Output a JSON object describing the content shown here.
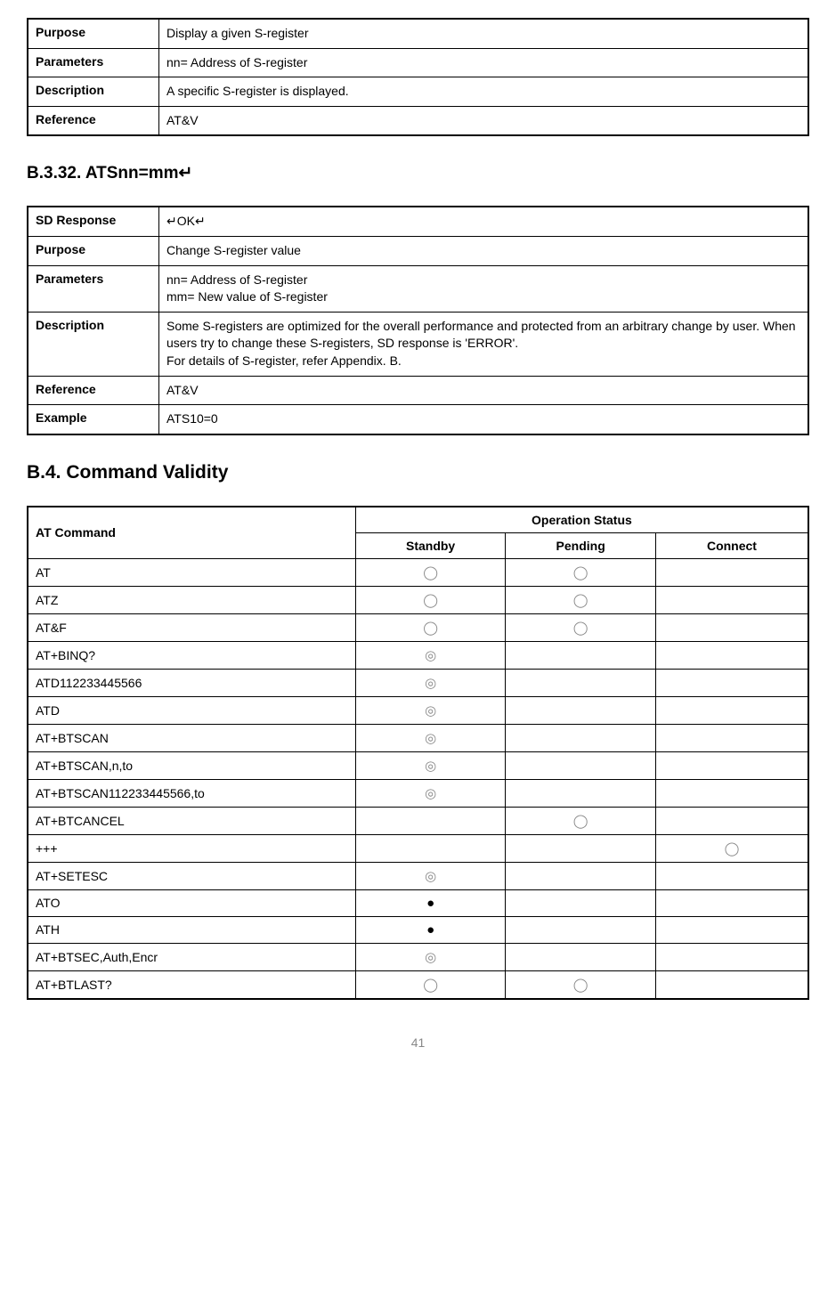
{
  "table1": {
    "rows": [
      {
        "label": "Purpose",
        "value": "Display a given S-register"
      },
      {
        "label": "Parameters",
        "value": "nn= Address of S-register"
      },
      {
        "label": "Description",
        "value": "A specific S-register is displayed."
      },
      {
        "label": "Reference",
        "value": "AT&V"
      }
    ]
  },
  "section1_title": "B.3.32. ATSnn=mm↵",
  "table2": {
    "rows": [
      {
        "label": "SD Response",
        "value": "↵OK↵"
      },
      {
        "label": "Purpose",
        "value": "Change S-register value"
      },
      {
        "label": "Parameters",
        "value": "nn= Address of S-register\nmm= New value of S-register"
      },
      {
        "label": "Description",
        "value": "Some S-registers are optimized for the overall performance and protected from an arbitrary change by user. When users try to change these S-registers, SD response is 'ERROR'.\nFor details of S-register, refer Appendix. B."
      },
      {
        "label": "Reference",
        "value": "AT&V"
      },
      {
        "label": "Example",
        "value": "ATS10=0"
      }
    ]
  },
  "section2_title": "B.4. Command Validity",
  "validity": {
    "head_cmd": "AT Command",
    "head_status": "Operation Status",
    "cols": [
      "Standby",
      "Pending",
      "Connect"
    ],
    "symbols": {
      "open": "◯",
      "double": "◎",
      "filled": "●"
    },
    "rows": [
      {
        "cmd": "AT",
        "s": "open",
        "p": "open",
        "c": ""
      },
      {
        "cmd": "ATZ",
        "s": "open",
        "p": "open",
        "c": ""
      },
      {
        "cmd": "AT&F",
        "s": "open",
        "p": "open",
        "c": ""
      },
      {
        "cmd": "AT+BINQ?",
        "s": "double",
        "p": "",
        "c": ""
      },
      {
        "cmd": "ATD112233445566",
        "s": "double",
        "p": "",
        "c": ""
      },
      {
        "cmd": "ATD",
        "s": "double",
        "p": "",
        "c": ""
      },
      {
        "cmd": "AT+BTSCAN",
        "s": "double",
        "p": "",
        "c": ""
      },
      {
        "cmd": "AT+BTSCAN,n,to",
        "s": "double",
        "p": "",
        "c": ""
      },
      {
        "cmd": "AT+BTSCAN112233445566,to",
        "s": "double",
        "p": "",
        "c": ""
      },
      {
        "cmd": "AT+BTCANCEL",
        "s": "",
        "p": "open",
        "c": ""
      },
      {
        "cmd": "+++",
        "s": "",
        "p": "",
        "c": "open"
      },
      {
        "cmd": "AT+SETESC",
        "s": "double",
        "p": "",
        "c": ""
      },
      {
        "cmd": "ATO",
        "s": "filled",
        "p": "",
        "c": ""
      },
      {
        "cmd": "ATH",
        "s": "filled",
        "p": "",
        "c": ""
      },
      {
        "cmd": "AT+BTSEC,Auth,Encr",
        "s": "double",
        "p": "",
        "c": ""
      },
      {
        "cmd": "AT+BTLAST?",
        "s": "open",
        "p": "open",
        "c": ""
      }
    ]
  },
  "page_number": "41"
}
